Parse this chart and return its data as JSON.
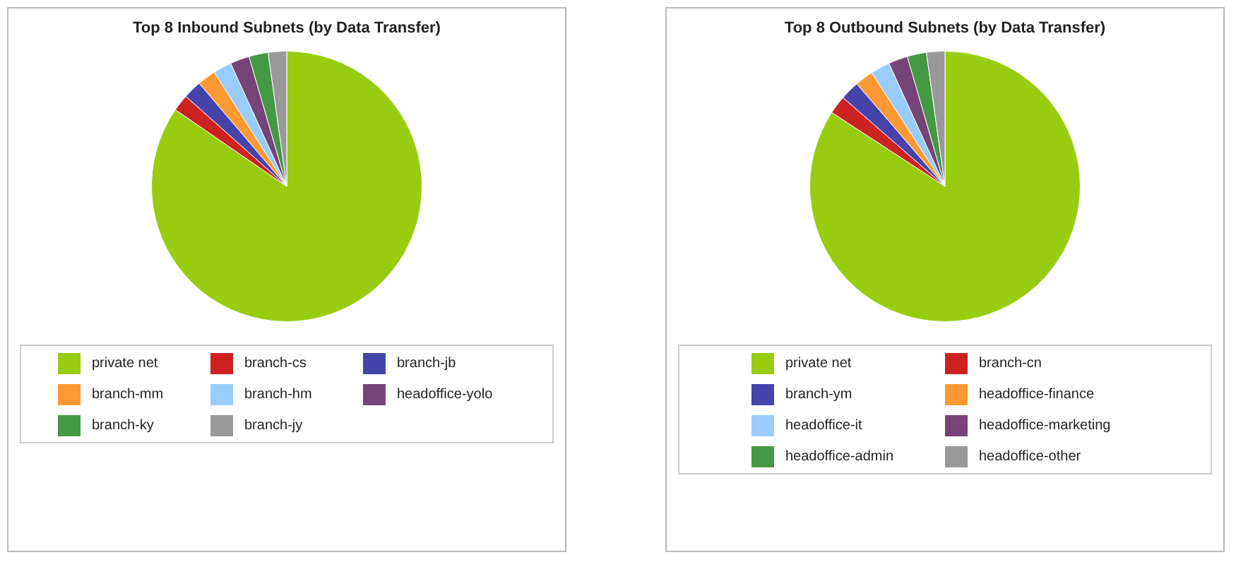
{
  "chart_data": [
    {
      "type": "pie",
      "title": "Top 8 Inbound Subnets (by Data Transfer)",
      "categories": [
        "private net",
        "branch-cs",
        "branch-jb",
        "branch-mm",
        "branch-hm",
        "headoffice-yolo",
        "branch-ky",
        "branch-jy"
      ],
      "values": [
        84.6,
        2.0,
        2.2,
        2.2,
        2.2,
        2.3,
        2.3,
        2.2
      ],
      "colors": [
        "#99cc11",
        "#cc2222",
        "#4444aa",
        "#ff9933",
        "#99ccff",
        "#774477",
        "#449944",
        "#999999"
      ],
      "legend": "bottom"
    },
    {
      "type": "pie",
      "title": "Top 8 Outbound Subnets (by Data Transfer)",
      "categories": [
        "private net",
        "branch-cn",
        "branch-ym",
        "headoffice-finance",
        "headoffice-it",
        "headoffice-marketing",
        "headoffice-admin",
        "headoffice-other"
      ],
      "values": [
        84.2,
        2.2,
        2.3,
        2.2,
        2.3,
        2.3,
        2.3,
        2.2
      ],
      "colors": [
        "#99cc11",
        "#cc2222",
        "#4444aa",
        "#ff9933",
        "#99ccff",
        "#774477",
        "#449944",
        "#999999"
      ],
      "legend": "bottom"
    }
  ]
}
